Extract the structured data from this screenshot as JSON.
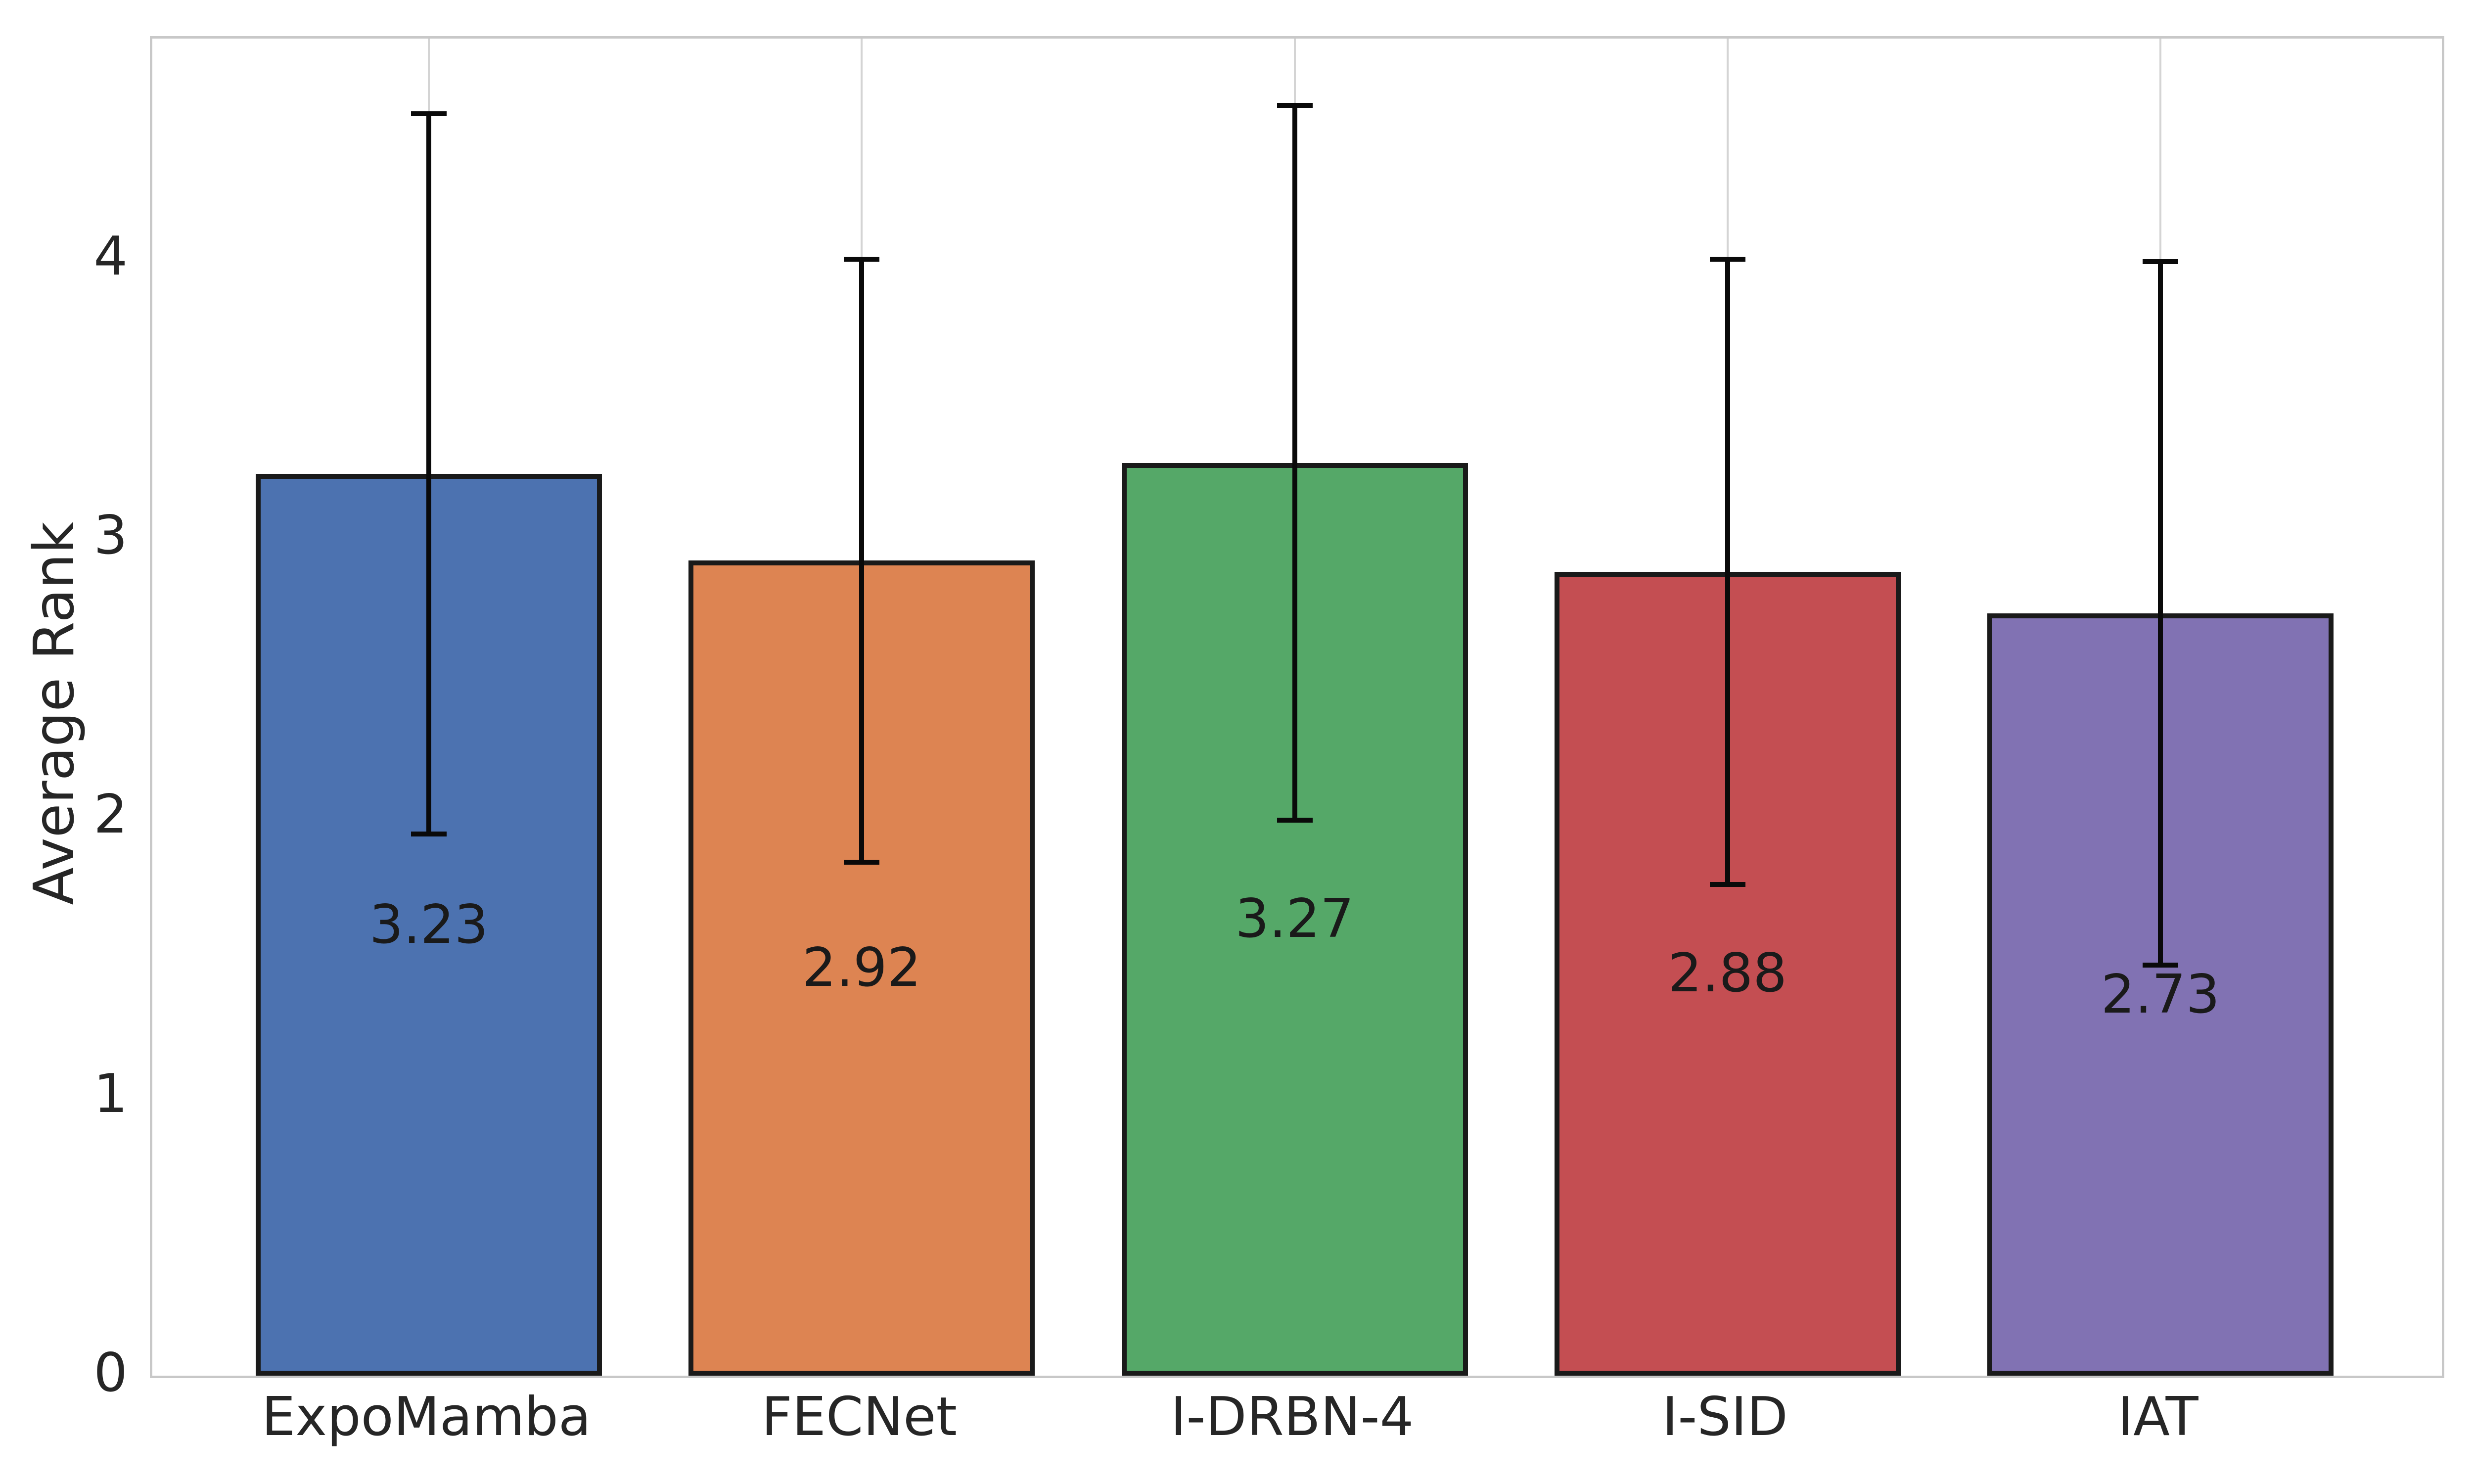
{
  "chart_data": {
    "type": "bar",
    "title": "",
    "xlabel": "",
    "ylabel": "Average Rank",
    "categories": [
      "ExpoMamba",
      "FECNet",
      "I-DRBN-4",
      "I-SID",
      "IAT"
    ],
    "values": [
      3.23,
      2.92,
      3.27,
      2.88,
      2.73
    ],
    "value_labels": [
      "3.23",
      "2.92",
      "3.27",
      "2.88",
      "2.73"
    ],
    "errors": [
      1.29,
      1.08,
      1.28,
      1.12,
      1.26
    ],
    "error_low": [
      1.94,
      1.84,
      1.99,
      1.76,
      1.47
    ],
    "error_high": [
      4.52,
      4.0,
      4.55,
      4.0,
      3.99
    ],
    "bar_colors": [
      "#4c72b0",
      "#dd8452",
      "#55a868",
      "#c44e52",
      "#8172b3"
    ],
    "yticks": [
      "0",
      "1",
      "2",
      "3",
      "4"
    ],
    "ytick_values": [
      0,
      1,
      2,
      3,
      4
    ],
    "ylim": [
      0,
      4.79
    ],
    "grid": "vertical-at-category-centers",
    "legend": "none",
    "bar_edge_color": "#1a1a1a",
    "error_bar_color": "#0a0a0a",
    "grid_color": "#d4d4d4",
    "spine_color": "#c8c8c8",
    "text_color": "#262626",
    "background": "#ffffff"
  }
}
